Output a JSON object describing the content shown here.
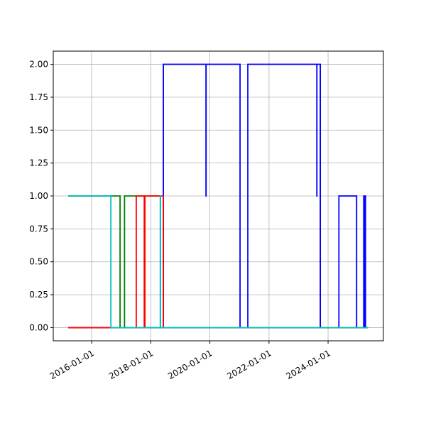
{
  "chart_data": {
    "type": "step",
    "xlim": [
      "2014-09-13",
      "2025-11-15"
    ],
    "xticks": [
      "2016-01-01",
      "2018-01-01",
      "2020-01-01",
      "2022-01-01",
      "2024-01-01"
    ],
    "ylim": [
      -0.1,
      2.1
    ],
    "yticks": [
      {
        "value": 0,
        "label": "0.00"
      },
      {
        "value": 0.25,
        "label": "0.25"
      },
      {
        "value": 0.5,
        "label": "0.50"
      },
      {
        "value": 0.75,
        "label": "0.75"
      },
      {
        "value": 1,
        "label": "1.00"
      },
      {
        "value": 1.25,
        "label": "1.25"
      },
      {
        "value": 1.5,
        "label": "1.50"
      },
      {
        "value": 1.75,
        "label": "1.75"
      },
      {
        "value": 2,
        "label": "2.00"
      }
    ],
    "grid": true,
    "series": [
      {
        "color": "#0000ff",
        "x": [
          "2015-03-17",
          "2018-06-05",
          "2019-11-14",
          "2019-11-15",
          "2021-01-08",
          "2021-04-14",
          "2023-08-15",
          "2023-08-16",
          "2023-09-27",
          "2024-05-14",
          "2024-12-19",
          "2025-03-17",
          "2025-03-20",
          "2025-04-05",
          "2025-04-08",
          "2025-05-08"
        ],
        "values": [
          0,
          2,
          1,
          2,
          0,
          2,
          1,
          2,
          0,
          1,
          0,
          1,
          0,
          1,
          0,
          0
        ]
      },
      {
        "color": "#008000",
        "x": [
          "2015-03-17",
          "2016-12-17",
          "2017-02-10",
          "2018-05-01",
          "2025-05-08"
        ],
        "values": [
          1,
          0,
          1,
          0,
          0
        ]
      },
      {
        "color": "#ff0000",
        "x": [
          "2015-03-17",
          "2017-07-05",
          "2017-10-12",
          "2017-10-20",
          "2018-06-05",
          "2025-05-08"
        ],
        "values": [
          0,
          1,
          0,
          1,
          0,
          0
        ]
      },
      {
        "color": "#00bfbf",
        "x": [
          "2015-03-17",
          "2016-08-25",
          "2018-04-28",
          "2018-05-01",
          "2025-05-08"
        ],
        "values": [
          1,
          0,
          1,
          0,
          0
        ]
      }
    ]
  }
}
